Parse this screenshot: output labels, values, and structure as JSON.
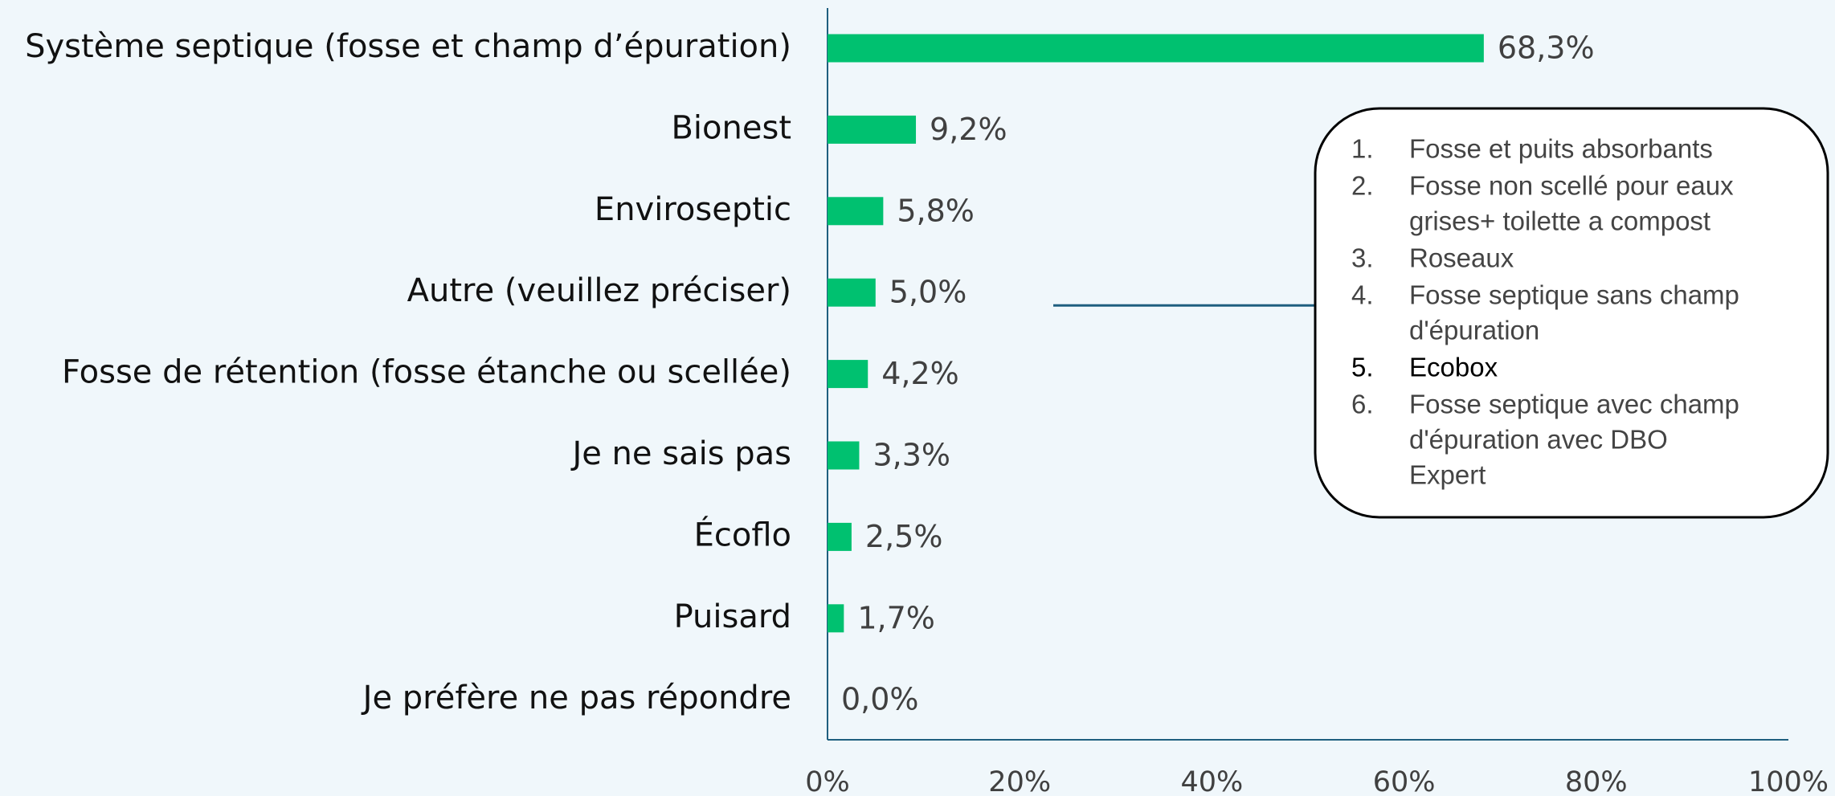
{
  "chart_data": {
    "type": "bar",
    "orientation": "horizontal",
    "categories": [
      "Système septique (fosse et champ d’épuration)",
      "Bionest",
      "Enviroseptic",
      "Autre (veuillez préciser)",
      "Fosse de rétention (fosse étanche ou scellée)",
      "Je ne sais pas",
      "Écoflo",
      "Puisard",
      "Je préfère ne pas répondre"
    ],
    "values": [
      68.3,
      9.2,
      5.8,
      5.0,
      4.2,
      3.3,
      2.5,
      1.7,
      0.0
    ],
    "value_labels": [
      "68,3%",
      "9,2%",
      "5,8%",
      "5,0%",
      "4,2%",
      "3,3%",
      "2,5%",
      "1,7%",
      "0,0%"
    ],
    "color": "#00c170",
    "xlim": [
      0,
      100
    ],
    "xticks": [
      {
        "value": 0,
        "label": "0%"
      },
      {
        "value": 20,
        "label": "20%"
      },
      {
        "value": 40,
        "label": "40%"
      },
      {
        "value": 60,
        "label": "60%"
      },
      {
        "value": 80,
        "label": "80%"
      },
      {
        "value": 100,
        "label": "100%"
      }
    ],
    "grid": false,
    "annotation": {
      "category_index": 3,
      "items": [
        {
          "number": "1.",
          "lines": [
            "Fosse et puits absorbants"
          ]
        },
        {
          "number": "2.",
          "lines": [
            "Fosse non scellé pour eaux",
            "grises+ toilette a compost"
          ]
        },
        {
          "number": "3.",
          "lines": [
            "Roseaux"
          ]
        },
        {
          "number": "4.",
          "lines": [
            "Fosse septique sans champ",
            "d'épuration"
          ]
        },
        {
          "number": "5.",
          "lines": [
            "Ecobox"
          ]
        },
        {
          "number": "6.",
          "lines": [
            "Fosse septique avec champ",
            "d'épuration avec DBO",
            "Expert"
          ]
        }
      ]
    }
  }
}
